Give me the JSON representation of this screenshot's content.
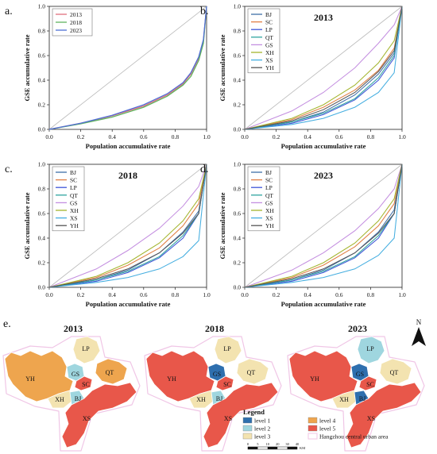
{
  "colors": {
    "diag": "#b9b9b9",
    "panel_a": {
      "2013": "#e0707e",
      "2018": "#5fb35f",
      "2023": "#4f6fd6"
    },
    "districts": {
      "BJ": "#3f6fa8",
      "SC": "#e07f44",
      "LP": "#3f55d8",
      "QT": "#2fa5a0",
      "GS": "#c48fe0",
      "XH": "#a3b52e",
      "XS": "#45aee0",
      "YH": "#555555"
    },
    "levels": {
      "level 1": "#2e6fae",
      "level 2": "#9fd6df",
      "level 3": "#f3e3b0",
      "level 4": "#eea54e",
      "level 5": "#e8574a"
    },
    "urban_outline": "#f0c6e6"
  },
  "chart_data": [
    {
      "panel": "a.",
      "type": "line",
      "title": "",
      "xlabel": "Population accumulative rate",
      "ylabel": "GSE accumulative rate",
      "xlim": [
        0,
        1
      ],
      "ylim": [
        0,
        1
      ],
      "xticks": [
        "0.0",
        "0.2",
        "0.4",
        "0.6",
        "0.8",
        "1.0"
      ],
      "yticks": [
        "0.0",
        "0.2",
        "0.4",
        "0.6",
        "0.8",
        "1.0"
      ],
      "legend_position": "top-left",
      "series": [
        {
          "name": "2013",
          "x": [
            0,
            0.2,
            0.4,
            0.6,
            0.75,
            0.85,
            0.9,
            0.95,
            0.98,
            1.0
          ],
          "y": [
            0,
            0.05,
            0.11,
            0.19,
            0.28,
            0.37,
            0.45,
            0.58,
            0.72,
            1.0
          ]
        },
        {
          "name": "2018",
          "x": [
            0,
            0.2,
            0.4,
            0.6,
            0.75,
            0.85,
            0.9,
            0.95,
            0.98,
            1.0
          ],
          "y": [
            0,
            0.045,
            0.1,
            0.18,
            0.27,
            0.36,
            0.43,
            0.56,
            0.7,
            1.0
          ]
        },
        {
          "name": "2023",
          "x": [
            0,
            0.2,
            0.4,
            0.6,
            0.75,
            0.85,
            0.9,
            0.95,
            0.98,
            1.0
          ],
          "y": [
            0,
            0.05,
            0.115,
            0.2,
            0.29,
            0.38,
            0.46,
            0.59,
            0.73,
            1.0
          ]
        }
      ]
    },
    {
      "panel": "b.",
      "type": "line",
      "title": "2013",
      "xlabel": "Population accumulative rate",
      "ylabel": "GSE accumulative rate",
      "xlim": [
        0,
        1
      ],
      "ylim": [
        0,
        1
      ],
      "xticks": [
        "0.0",
        "0.2",
        "0.4",
        "0.6",
        "0.8",
        "1.0"
      ],
      "yticks": [
        "0.0",
        "0.2",
        "0.4",
        "0.6",
        "0.8",
        "1.0"
      ],
      "legend_position": "top-left",
      "series": [
        {
          "name": "BJ",
          "x": [
            0,
            0.3,
            0.5,
            0.7,
            0.85,
            0.95,
            1.0
          ],
          "y": [
            0,
            0.06,
            0.14,
            0.28,
            0.45,
            0.62,
            1.0
          ]
        },
        {
          "name": "SC",
          "x": [
            0,
            0.3,
            0.5,
            0.7,
            0.85,
            0.95,
            1.0
          ],
          "y": [
            0,
            0.08,
            0.18,
            0.32,
            0.48,
            0.66,
            1.0
          ]
        },
        {
          "name": "LP",
          "x": [
            0,
            0.3,
            0.5,
            0.7,
            0.85,
            0.95,
            1.0
          ],
          "y": [
            0,
            0.05,
            0.12,
            0.24,
            0.4,
            0.58,
            1.0
          ]
        },
        {
          "name": "QT",
          "x": [
            0,
            0.3,
            0.5,
            0.7,
            0.85,
            0.95,
            1.0
          ],
          "y": [
            0,
            0.06,
            0.13,
            0.25,
            0.42,
            0.6,
            1.0
          ]
        },
        {
          "name": "GS",
          "x": [
            0,
            0.3,
            0.5,
            0.7,
            0.85,
            0.95,
            1.0
          ],
          "y": [
            0,
            0.15,
            0.3,
            0.5,
            0.7,
            0.85,
            1.0
          ]
        },
        {
          "name": "XH",
          "x": [
            0,
            0.3,
            0.5,
            0.7,
            0.85,
            0.95,
            1.0
          ],
          "y": [
            0,
            0.09,
            0.2,
            0.36,
            0.54,
            0.72,
            1.0
          ]
        },
        {
          "name": "XS",
          "x": [
            0,
            0.3,
            0.5,
            0.7,
            0.85,
            0.95,
            1.0
          ],
          "y": [
            0,
            0.04,
            0.09,
            0.18,
            0.3,
            0.46,
            1.0
          ]
        },
        {
          "name": "YH",
          "x": [
            0,
            0.3,
            0.5,
            0.7,
            0.85,
            0.95,
            1.0
          ],
          "y": [
            0,
            0.07,
            0.16,
            0.3,
            0.47,
            0.64,
            1.0
          ]
        }
      ]
    },
    {
      "panel": "c.",
      "type": "line",
      "title": "2018",
      "xlabel": "Population accumulative rate",
      "ylabel": "GSE accumulative rate",
      "xlim": [
        0,
        1
      ],
      "ylim": [
        0,
        1
      ],
      "xticks": [
        "0.0",
        "0.2",
        "0.4",
        "0.6",
        "0.8",
        "1.0"
      ],
      "yticks": [
        "0.0",
        "0.2",
        "0.4",
        "0.6",
        "0.8",
        "1.0"
      ],
      "legend_position": "top-left",
      "series": [
        {
          "name": "BJ",
          "x": [
            0,
            0.3,
            0.5,
            0.7,
            0.85,
            0.95,
            1.0
          ],
          "y": [
            0,
            0.06,
            0.14,
            0.28,
            0.45,
            0.62,
            1.0
          ]
        },
        {
          "name": "SC",
          "x": [
            0,
            0.3,
            0.5,
            0.7,
            0.85,
            0.95,
            1.0
          ],
          "y": [
            0,
            0.08,
            0.18,
            0.32,
            0.5,
            0.68,
            1.0
          ]
        },
        {
          "name": "LP",
          "x": [
            0,
            0.3,
            0.5,
            0.7,
            0.85,
            0.95,
            1.0
          ],
          "y": [
            0,
            0.05,
            0.12,
            0.24,
            0.4,
            0.6,
            1.0
          ]
        },
        {
          "name": "QT",
          "x": [
            0,
            0.3,
            0.5,
            0.7,
            0.85,
            0.95,
            1.0
          ],
          "y": [
            0,
            0.06,
            0.13,
            0.25,
            0.42,
            0.6,
            1.0
          ]
        },
        {
          "name": "GS",
          "x": [
            0,
            0.3,
            0.5,
            0.7,
            0.85,
            0.95,
            1.0
          ],
          "y": [
            0,
            0.15,
            0.3,
            0.48,
            0.66,
            0.82,
            1.0
          ]
        },
        {
          "name": "XH",
          "x": [
            0,
            0.3,
            0.5,
            0.7,
            0.85,
            0.95,
            1.0
          ],
          "y": [
            0,
            0.09,
            0.2,
            0.36,
            0.54,
            0.72,
            1.0
          ]
        },
        {
          "name": "XS",
          "x": [
            0,
            0.3,
            0.5,
            0.7,
            0.85,
            0.95,
            1.0
          ],
          "y": [
            0,
            0.04,
            0.08,
            0.15,
            0.25,
            0.38,
            1.0
          ]
        },
        {
          "name": "YH",
          "x": [
            0,
            0.3,
            0.5,
            0.7,
            0.85,
            0.95,
            1.0
          ],
          "y": [
            0,
            0.07,
            0.15,
            0.28,
            0.44,
            0.6,
            1.0
          ]
        }
      ]
    },
    {
      "panel": "d.",
      "type": "line",
      "title": "2023",
      "xlabel": "Population accumulative rate",
      "ylabel": "GSE accumulative rate",
      "xlim": [
        0,
        1
      ],
      "ylim": [
        0,
        1
      ],
      "xticks": [
        "0.0",
        "0.2",
        "0.4",
        "0.6",
        "0.8",
        "1.0"
      ],
      "yticks": [
        "0.0",
        "0.2",
        "0.4",
        "0.6",
        "0.8",
        "1.0"
      ],
      "legend_position": "top-left",
      "series": [
        {
          "name": "BJ",
          "x": [
            0,
            0.3,
            0.5,
            0.7,
            0.85,
            0.95,
            1.0
          ],
          "y": [
            0,
            0.06,
            0.14,
            0.28,
            0.45,
            0.63,
            1.0
          ]
        },
        {
          "name": "SC",
          "x": [
            0,
            0.3,
            0.5,
            0.7,
            0.85,
            0.95,
            1.0
          ],
          "y": [
            0,
            0.08,
            0.18,
            0.33,
            0.5,
            0.68,
            1.0
          ]
        },
        {
          "name": "LP",
          "x": [
            0,
            0.3,
            0.5,
            0.7,
            0.85,
            0.95,
            1.0
          ],
          "y": [
            0,
            0.05,
            0.12,
            0.24,
            0.4,
            0.6,
            1.0
          ]
        },
        {
          "name": "QT",
          "x": [
            0,
            0.3,
            0.5,
            0.7,
            0.85,
            0.95,
            1.0
          ],
          "y": [
            0,
            0.06,
            0.13,
            0.25,
            0.42,
            0.6,
            1.0
          ]
        },
        {
          "name": "GS",
          "x": [
            0,
            0.3,
            0.5,
            0.7,
            0.85,
            0.95,
            1.0
          ],
          "y": [
            0,
            0.14,
            0.28,
            0.46,
            0.64,
            0.8,
            1.0
          ]
        },
        {
          "name": "XH",
          "x": [
            0,
            0.3,
            0.5,
            0.7,
            0.85,
            0.95,
            1.0
          ],
          "y": [
            0,
            0.09,
            0.2,
            0.36,
            0.54,
            0.72,
            1.0
          ]
        },
        {
          "name": "XS",
          "x": [
            0,
            0.3,
            0.5,
            0.7,
            0.85,
            0.95,
            1.0
          ],
          "y": [
            0,
            0.04,
            0.08,
            0.15,
            0.26,
            0.4,
            1.0
          ]
        },
        {
          "name": "YH",
          "x": [
            0,
            0.3,
            0.5,
            0.7,
            0.85,
            0.95,
            1.0
          ],
          "y": [
            0,
            0.07,
            0.15,
            0.28,
            0.44,
            0.6,
            1.0
          ]
        }
      ]
    }
  ],
  "maps": {
    "panel_label": "e.",
    "years": [
      {
        "year": "2013",
        "levels": {
          "YH": "level 4",
          "QT": "level 4",
          "XS": "level 5",
          "SC": "level 5",
          "LP": "level 3",
          "GS": "level 2",
          "XH": "level 3",
          "BJ": "level 2"
        }
      },
      {
        "year": "2018",
        "levels": {
          "YH": "level 5",
          "QT": "level 3",
          "XS": "level 5",
          "SC": "level 5",
          "LP": "level 3",
          "GS": "level 1",
          "XH": "level 3",
          "BJ": "level 2"
        }
      },
      {
        "year": "2023",
        "levels": {
          "YH": "level 5",
          "QT": "level 3",
          "XS": "level 5",
          "SC": "level 5",
          "LP": "level 2",
          "GS": "level 1",
          "XH": "level 3",
          "BJ": "level 1"
        }
      }
    ],
    "legend": {
      "title": "Legend",
      "items": [
        "level 1",
        "level 2",
        "level 3",
        "level 4",
        "level 5"
      ],
      "urban_label": "Hangzhou central urban area"
    },
    "scale_labels": [
      "0",
      "5",
      "10",
      "20",
      "30",
      "40"
    ],
    "scale_unit": "KM",
    "north_label": "N"
  }
}
